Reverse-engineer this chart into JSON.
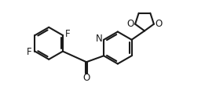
{
  "background_color": "#ffffff",
  "bond_color": "#1a1a1a",
  "text_color": "#1a1a1a",
  "bond_width": 1.5,
  "font_size": 8.5,
  "figsize": [
    2.61,
    1.38
  ],
  "dpi": 100,
  "xlim": [
    0,
    11
  ],
  "ylim": [
    0,
    6
  ]
}
